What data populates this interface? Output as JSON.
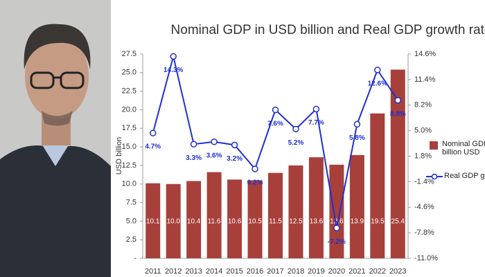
{
  "chart_data": {
    "type": "bar_line",
    "title": "Nominal GDP in USD billion and Real GDP growth rate",
    "y_label": "USD billion",
    "categories": [
      "2011",
      "2012",
      "2013",
      "2014",
      "2015",
      "2016",
      "2017",
      "2018",
      "2019",
      "2020",
      "2021",
      "2022",
      "2023"
    ],
    "series": [
      {
        "name": "Nominal GDP, billion USD",
        "type": "bar",
        "color": "#a7403b",
        "values": [
          10.1,
          10.0,
          10.4,
          11.6,
          10.6,
          10.5,
          11.5,
          12.5,
          13.6,
          12.6,
          13.9,
          19.5,
          25.4
        ],
        "value_labels": [
          "10.1",
          "10.0",
          "10.4",
          "11.6",
          "10.6",
          "10.5",
          "11.5",
          "12.5",
          "13.6",
          "12.6",
          "13.9",
          "19.5",
          "25.4"
        ]
      },
      {
        "name": "Real GDP growth",
        "type": "line",
        "axis": "y2",
        "color": "#1f2fd0",
        "values": [
          4.7,
          14.3,
          3.3,
          3.6,
          3.2,
          0.2,
          7.6,
          5.2,
          7.7,
          -7.2,
          5.8,
          12.6,
          8.8
        ],
        "value_labels": [
          "4.7%",
          "14.3%",
          "3.3%",
          "3.6%",
          "3.2%",
          "0.2%",
          "7.6%",
          "5.2%",
          "7.7%",
          "-7.2%",
          "5.8%",
          "12.6%",
          "8.8%"
        ]
      }
    ],
    "ylim": [
      0,
      27.5
    ],
    "yticks": [
      {
        "value": 0,
        "label": "-"
      },
      2.5,
      {
        "value": 5,
        "label": "5.0"
      },
      7.5,
      {
        "value": 10,
        "label": "10.0"
      },
      12.5,
      {
        "value": 15,
        "label": "15.0"
      },
      17.5,
      {
        "value": 20,
        "label": "20.0"
      },
      22.5,
      {
        "value": 25,
        "label": "25.0"
      },
      27.5
    ],
    "y2lim": [
      -11,
      14.6
    ],
    "y2ticks": [
      {
        "value": -11,
        "label": "-11.0%"
      },
      {
        "value": -7.8,
        "label": "-7.8%"
      },
      {
        "value": -4.6,
        "label": "-4.6%"
      },
      {
        "value": -1.4,
        "label": "-1.4%"
      },
      {
        "value": 1.8,
        "label": "1.8%"
      },
      {
        "value": 5,
        "label": "5.0%"
      },
      {
        "value": 8.2,
        "label": "8.2%"
      },
      {
        "value": 11.4,
        "label": "11.4%"
      },
      {
        "value": 14.6,
        "label": "14.6%"
      }
    ]
  }
}
